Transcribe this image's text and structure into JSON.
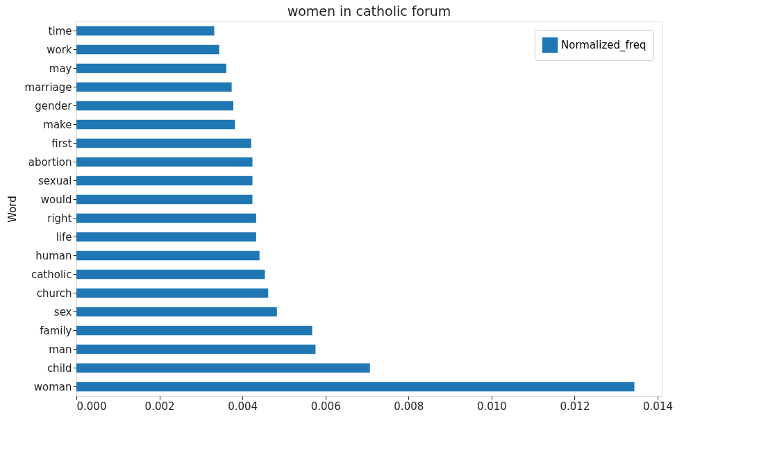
{
  "chart_data": {
    "type": "bar",
    "orientation": "horizontal",
    "title": "women in catholic forum",
    "ylabel": "Word",
    "categories": [
      "time",
      "work",
      "may",
      "marriage",
      "gender",
      "make",
      "first",
      "abortion",
      "sexual",
      "would",
      "right",
      "life",
      "human",
      "catholic",
      "church",
      "sex",
      "family",
      "man",
      "child",
      "woman"
    ],
    "series": [
      {
        "name": "Normalized_freq",
        "color": "#1f77b4",
        "values": [
          0.00332,
          0.00344,
          0.00361,
          0.00374,
          0.00378,
          0.00382,
          0.00421,
          0.00424,
          0.00424,
          0.00424,
          0.00433,
          0.00433,
          0.00441,
          0.00454,
          0.00462,
          0.00483,
          0.00568,
          0.00576,
          0.00707,
          0.01344
        ]
      }
    ],
    "xlim": [
      0,
      0.0141
    ],
    "xticks": [
      {
        "value": 0,
        "label": "0.000"
      },
      {
        "value": 0.002,
        "label": "0.002"
      },
      {
        "value": 0.004,
        "label": "0.004"
      },
      {
        "value": 0.006,
        "label": "0.006"
      },
      {
        "value": 0.008,
        "label": "0.008"
      },
      {
        "value": 0.01,
        "label": "0.010"
      },
      {
        "value": 0.012,
        "label": "0.012"
      },
      {
        "value": 0.014,
        "label": "0.014"
      }
    ],
    "grid": false,
    "legend": "top right"
  }
}
